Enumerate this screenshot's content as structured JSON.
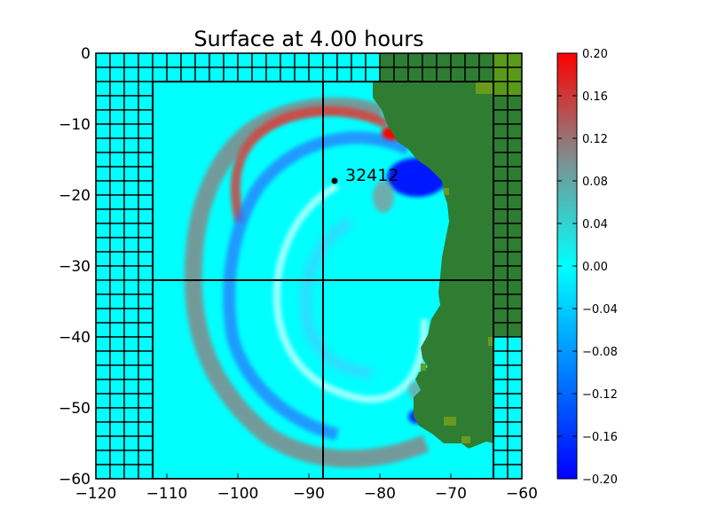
{
  "chart_data": {
    "type": "heatmap",
    "title": "Surface at 4.00 hours",
    "xlabel": "",
    "ylabel": "",
    "xlim": [
      -120,
      -60
    ],
    "ylim": [
      -60,
      0
    ],
    "xticks": [
      "−120",
      "−110",
      "−100",
      "−90",
      "−80",
      "−70",
      "−60"
    ],
    "yticks": [
      "0",
      "−10",
      "−20",
      "−30",
      "−40",
      "−50",
      "−60"
    ],
    "colorbar": {
      "range": [
        -0.2,
        0.2
      ],
      "colormap": [
        "#0000ff",
        "#00ffff",
        "#ff0000"
      ],
      "ticks": [
        "0.20",
        "0.16",
        "0.12",
        "0.08",
        "0.04",
        "0.00",
        "−0.04",
        "−0.08",
        "−0.12",
        "−0.16",
        "−0.20"
      ]
    },
    "gauge": {
      "id": "32412",
      "x": -86.4,
      "y": -18.0
    },
    "grid_lines": {
      "vertical_x": -88,
      "horizontal_y": -32
    },
    "colors": {
      "ocean": "#00ffff",
      "land": "#2e7d32",
      "land_coarse": "#5a9a1a"
    }
  }
}
